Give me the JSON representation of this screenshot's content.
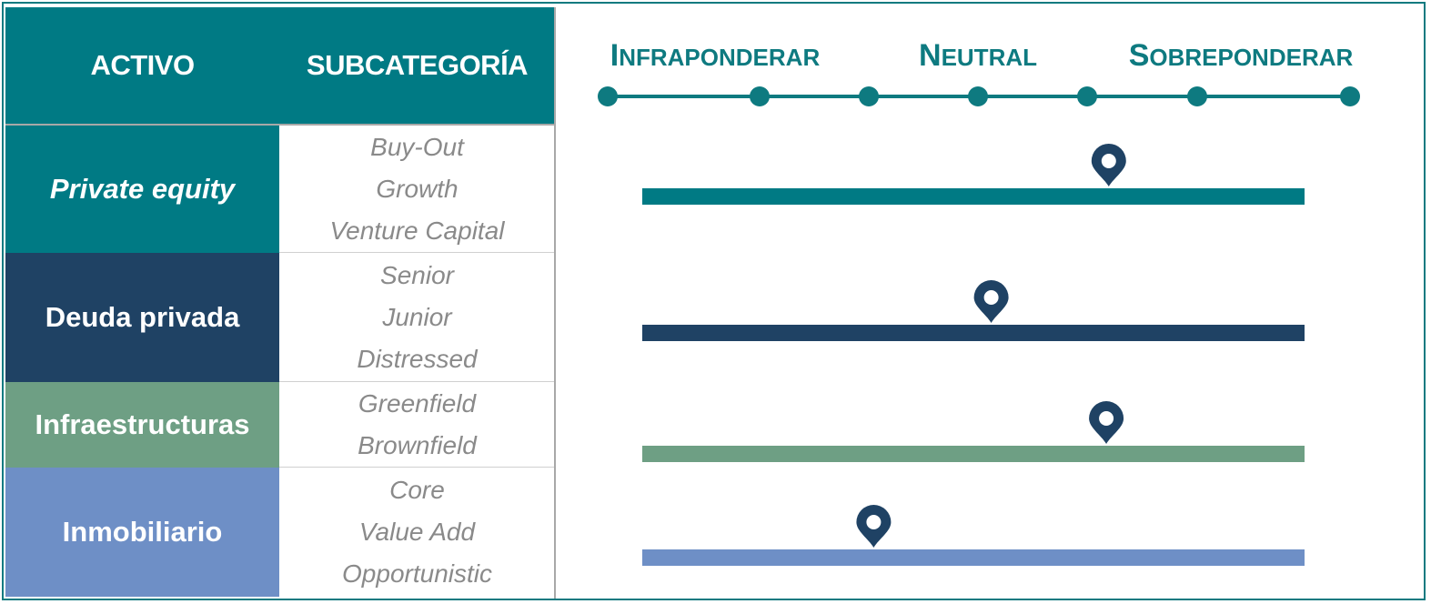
{
  "header": {
    "asset": "ACTIVO",
    "subcategory": "SUBCATEGORÍA"
  },
  "colors": {
    "header_bg": "#007a84",
    "private_equity": "#007a84",
    "deuda_privada": "#1f4264",
    "infraestructuras": "#6e9f84",
    "inmobiliario": "#6e8fc6",
    "pin": "#1f4264",
    "scale_text": "#0e7a80"
  },
  "chart_data": {
    "type": "rating-scale",
    "scale_labels": [
      "Infraponderar",
      "Neutral",
      "Sobreponderar"
    ],
    "scale_points": 7,
    "rows": [
      {
        "asset": "Private equity",
        "subcategories": [
          "Buy-Out",
          "Growth",
          "Venture Capital"
        ],
        "position": 5.05,
        "color": "#007a84"
      },
      {
        "asset": "Deuda privada",
        "subcategories": [
          "Senior",
          "Junior",
          "Distressed"
        ],
        "position": 4.1,
        "color": "#1f4264"
      },
      {
        "asset": "Infraestructuras",
        "subcategories": [
          "Greenfield",
          "Brownfield"
        ],
        "position": 5.03,
        "color": "#6e9f84"
      },
      {
        "asset": "Inmobiliario",
        "subcategories": [
          "Core",
          "Value Add",
          "Opportunistic"
        ],
        "position": 3.15,
        "color": "#6e8fc6"
      }
    ]
  }
}
